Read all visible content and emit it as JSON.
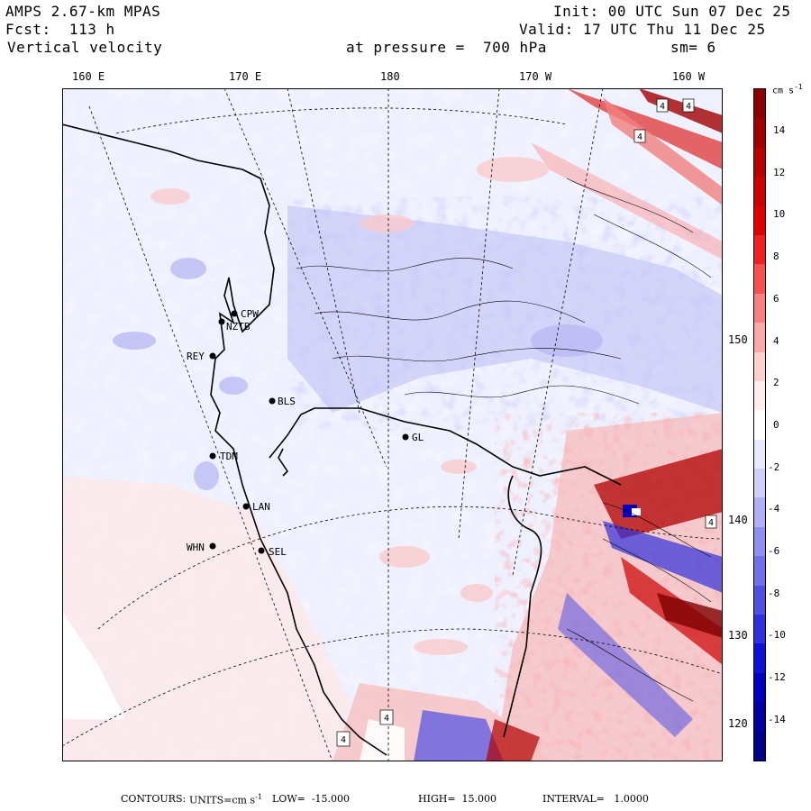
{
  "header": {
    "model": "AMPS 2.67-km MPAS",
    "forecast": "Fcst:  113 h",
    "variable": "Vertical velocity",
    "init": "Init: 00 UTC Sun 07 Dec 25",
    "valid": "Valid: 17 UTC Thu 11 Dec 25",
    "level": "at pressure =  700 hPa",
    "smoothing": "sm= 6"
  },
  "longitude_labels": [
    "160 E",
    "170 E",
    "180",
    "170 W",
    "160 W"
  ],
  "latitude_labels": [
    "150 W",
    "140 W",
    "130 W",
    "120 W"
  ],
  "colorbar": {
    "units_label": "cm s",
    "units_exponent": "-1",
    "ticks": [
      "14",
      "12",
      "10",
      "8",
      "6",
      "4",
      "2",
      "0",
      "-2",
      "-4",
      "-6",
      "-8",
      "-10",
      "-12",
      "-14"
    ],
    "colors": [
      "#8b0000",
      "#a00000",
      "#b80000",
      "#cc0000",
      "#e00000",
      "#f02020",
      "#f65050",
      "#f88080",
      "#fba8a8",
      "#fdd0d0",
      "#ffecec",
      "#ffffff",
      "#e8e8ff",
      "#d0d0fb",
      "#b0b0f6",
      "#9090f0",
      "#7070ea",
      "#5050e4",
      "#3030dc",
      "#1010d4",
      "#0000c0",
      "#0000a0",
      "#000088"
    ]
  },
  "stations": [
    {
      "id": "cpw",
      "label": "CPW"
    },
    {
      "id": "nztb",
      "label": "NZTB"
    },
    {
      "id": "rey",
      "label": "REY"
    },
    {
      "id": "bls",
      "label": "BLS"
    },
    {
      "id": "gl",
      "label": "GL"
    },
    {
      "id": "tdm",
      "label": "TDM"
    },
    {
      "id": "lan",
      "label": "LAN"
    },
    {
      "id": "whn",
      "label": "WHN"
    },
    {
      "id": "sel",
      "label": "SEL"
    }
  ],
  "extrema_markers": [
    "4",
    "4",
    "4",
    "4",
    "4",
    "4"
  ],
  "footer": {
    "contours_label": "CONTOURS:",
    "units": "UNITS=cm s",
    "units_exponent": "-1",
    "low": "LOW=  -15.000",
    "high": "HIGH=  15.000",
    "interval": "INTERVAL=   1.0000"
  }
}
